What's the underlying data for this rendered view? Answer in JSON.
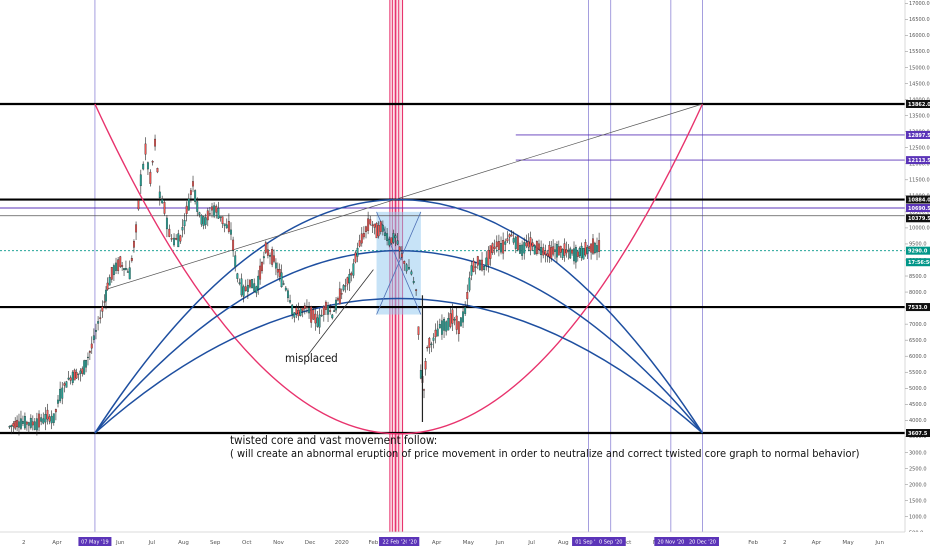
{
  "chart_data": {
    "type": "line",
    "title": "",
    "xlabel": "",
    "ylabel": "",
    "ylim": [
      -800,
      17600
    ],
    "y_ticks": [
      "17000.0",
      "16500.0",
      "16000.0",
      "15500.0",
      "15000.0",
      "14500.0",
      "14000.0",
      "13500.0",
      "13000.0",
      "12500.0",
      "12000.0",
      "11500.0",
      "11000.0",
      "10500.0",
      "10000.0",
      "9500.0",
      "9000.0",
      "8500.0",
      "8000.0",
      "7500.0",
      "7000.0",
      "6500.0",
      "6000.0",
      "5500.0",
      "5000.0",
      "4500.0",
      "4000.0",
      "3500.0",
      "3000.0",
      "2500.0",
      "2000.0",
      "1500.0",
      "1000.0",
      "500.0",
      "0.0"
    ],
    "x_ticks": [
      {
        "label": "2",
        "m": 0.45
      },
      {
        "label": "Apr",
        "m": 1.5
      },
      {
        "label": "Jun",
        "m": 3.5
      },
      {
        "label": "Jul",
        "m": 4.5
      },
      {
        "label": "Aug",
        "m": 5.5
      },
      {
        "label": "Sep",
        "m": 6.5
      },
      {
        "label": "Oct",
        "m": 7.5
      },
      {
        "label": "Nov",
        "m": 8.5
      },
      {
        "label": "Dec",
        "m": 9.5
      },
      {
        "label": "2020",
        "m": 10.5
      },
      {
        "label": "Feb",
        "m": 11.5
      },
      {
        "label": "Apr",
        "m": 13.5
      },
      {
        "label": "May",
        "m": 14.5
      },
      {
        "label": "Jun",
        "m": 15.5
      },
      {
        "label": "Jul",
        "m": 16.5
      },
      {
        "label": "Aug",
        "m": 17.5
      },
      {
        "label": "Oct",
        "m": 19.5
      },
      {
        "label": "Nov",
        "m": 20.5
      },
      {
        "label": "Feb",
        "m": 23.5
      },
      {
        "label": "2",
        "m": 24.5
      },
      {
        "label": "Apr",
        "m": 25.5
      },
      {
        "label": "May",
        "m": 26.5
      },
      {
        "label": "Jun",
        "m": 27.5
      }
    ],
    "x_badges": [
      {
        "label": "07 May '19",
        "m": 2.7
      },
      {
        "label": "22 Feb '20",
        "m": 12.2
      },
      {
        "label": "'20",
        "m": 12.75
      },
      {
        "label": "01 Sep '20",
        "m": 18.3
      },
      {
        "label": "0 Sep '20",
        "m": 19.0
      },
      {
        "label": "20 Nov '20",
        "m": 20.9
      },
      {
        "label": "20 Dec '20",
        "m": 21.9
      }
    ],
    "price_labels": [
      {
        "label": "13862.0",
        "y": 13862,
        "style": "dark"
      },
      {
        "label": "12897.5",
        "y": 12897,
        "style": "purple"
      },
      {
        "label": "12113.5",
        "y": 12113,
        "style": "purple"
      },
      {
        "label": "10884.0",
        "y": 10884,
        "style": "dark"
      },
      {
        "label": "10690.5",
        "y": 10620,
        "style": "purple"
      },
      {
        "label": "10379.5",
        "y": 10300,
        "style": "dark"
      },
      {
        "label": "9290.0",
        "y": 9290,
        "style": "teal"
      },
      {
        "label": "17:56:50",
        "y": 8930,
        "style": "teal"
      },
      {
        "label": "7533.0",
        "y": 7533,
        "style": "dark"
      },
      {
        "label": "3607.5",
        "y": 3607,
        "style": "dark"
      }
    ],
    "series": [
      {
        "values": [
          [
            0,
            3800
          ],
          [
            0.3,
            3950
          ],
          [
            0.8,
            3900
          ],
          [
            1.2,
            4100
          ],
          [
            1.4,
            4050
          ],
          [
            1.6,
            4800
          ],
          [
            1.8,
            5200
          ],
          [
            2.0,
            5400
          ],
          [
            2.3,
            5500
          ],
          [
            2.6,
            6300
          ],
          [
            2.8,
            7000
          ],
          [
            3.0,
            7700
          ],
          [
            3.1,
            8200
          ],
          [
            3.3,
            8700
          ],
          [
            3.5,
            8900
          ],
          [
            3.8,
            8600
          ],
          [
            4.0,
            9900
          ],
          [
            4.15,
            11500
          ],
          [
            4.3,
            12400
          ],
          [
            4.45,
            11500
          ],
          [
            4.6,
            12600
          ],
          [
            4.75,
            11000
          ],
          [
            4.9,
            10600
          ],
          [
            5.05,
            9800
          ],
          [
            5.2,
            9600
          ],
          [
            5.4,
            9700
          ],
          [
            5.6,
            10500
          ],
          [
            5.8,
            11400
          ],
          [
            6.0,
            10400
          ],
          [
            6.2,
            10200
          ],
          [
            6.4,
            10600
          ],
          [
            6.6,
            10500
          ],
          [
            6.8,
            10100
          ],
          [
            7.0,
            9900
          ],
          [
            7.2,
            8500
          ],
          [
            7.4,
            8000
          ],
          [
            7.6,
            8300
          ],
          [
            7.8,
            8100
          ],
          [
            8.1,
            9300
          ],
          [
            8.3,
            9100
          ],
          [
            8.6,
            8400
          ],
          [
            8.8,
            8000
          ],
          [
            9.0,
            7300
          ],
          [
            9.2,
            7400
          ],
          [
            9.4,
            7500
          ],
          [
            9.6,
            7200
          ],
          [
            9.8,
            7100
          ],
          [
            10.0,
            7600
          ],
          [
            10.2,
            7300
          ],
          [
            10.5,
            8000
          ],
          [
            10.8,
            8500
          ],
          [
            11.0,
            9300
          ],
          [
            11.2,
            9800
          ],
          [
            11.4,
            10200
          ],
          [
            11.6,
            9900
          ],
          [
            11.8,
            10000
          ],
          [
            12.0,
            9600
          ],
          [
            12.2,
            9700
          ],
          [
            12.4,
            9100
          ],
          [
            12.55,
            8800
          ],
          [
            12.7,
            8600
          ],
          [
            12.85,
            8000
          ],
          [
            13.0,
            5500
          ],
          [
            13.1,
            5000
          ],
          [
            13.2,
            6300
          ],
          [
            13.4,
            6500
          ],
          [
            13.6,
            6900
          ],
          [
            13.8,
            7000
          ],
          [
            14.0,
            7200
          ],
          [
            14.2,
            6900
          ],
          [
            14.4,
            7400
          ],
          [
            14.6,
            8700
          ],
          [
            14.8,
            8900
          ],
          [
            15.0,
            8800
          ],
          [
            15.2,
            9200
          ],
          [
            15.4,
            9500
          ],
          [
            15.6,
            9400
          ],
          [
            15.8,
            9800
          ],
          [
            16.0,
            9600
          ],
          [
            16.2,
            9300
          ],
          [
            16.4,
            9500
          ],
          [
            16.6,
            9400
          ],
          [
            16.8,
            9350
          ],
          [
            17.0,
            9200
          ],
          [
            17.3,
            9300
          ],
          [
            17.6,
            9250
          ],
          [
            17.9,
            9180
          ],
          [
            18.2,
            9300
          ],
          [
            18.5,
            9450
          ],
          [
            18.7,
            9310
          ]
        ]
      }
    ],
    "horizontal_lines": [
      {
        "y": 13862,
        "color": "#000000",
        "width": 2.2
      },
      {
        "y": 10884,
        "color": "#000000",
        "width": 2.2
      },
      {
        "y": 10379,
        "color": "#555555",
        "width": 0.8
      },
      {
        "y": 7533,
        "color": "#000000",
        "width": 2.2
      },
      {
        "y": 3607,
        "color": "#000000",
        "width": 2.2
      }
    ],
    "current_price": 9290,
    "annotations": {
      "misplaced": "misplaced",
      "note_line1": "twisted core and  vast movement follow:",
      "note_line2": "( will create an abnormal  eruption  of price movement  in order to neutralize and correct twisted core graph  to normal behavior)"
    },
    "grid": false,
    "legend": "none",
    "colors": {
      "bull": "#26a69a",
      "bear": "#ef5350",
      "arc": "#1e4fa0",
      "curve": "#e8336d",
      "accent_purple": "#5b34b8",
      "teal": "#009688",
      "box": "#90c8f0"
    }
  }
}
